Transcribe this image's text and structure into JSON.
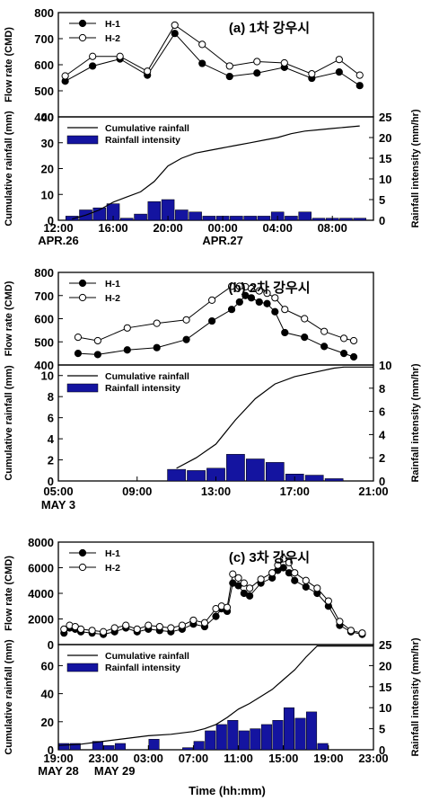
{
  "chart_data": [
    {
      "type": "line",
      "title": "(a) 1차 강우시",
      "xlabel": "",
      "ylabel": "Flow rate (CMD)",
      "xlim": [
        0,
        23
      ],
      "ylim": [
        400,
        800
      ],
      "yticks": [
        400,
        500,
        600,
        700,
        800
      ],
      "x_tick_labels": [
        {
          "x": 0,
          "label": "12:00"
        },
        {
          "x": 4,
          "label": "16:00"
        },
        {
          "x": 8,
          "label": "20:00"
        },
        {
          "x": 12,
          "label": "00:00"
        },
        {
          "x": 16,
          "label": "04:00"
        },
        {
          "x": 20,
          "label": "08:00"
        }
      ],
      "date_labels": [
        {
          "x": 0,
          "label": "APR.26"
        },
        {
          "x": 12,
          "label": "APR.27"
        }
      ],
      "legend": "top-left",
      "series": [
        {
          "name": "H-1",
          "marker": "filled-circle",
          "x": [
            0.5,
            2.5,
            4.5,
            6.5,
            8.5,
            10.5,
            12.5,
            14.5,
            16.5,
            18.5,
            20.5,
            22
          ],
          "y": [
            537,
            595,
            622,
            560,
            720,
            605,
            555,
            568,
            590,
            548,
            572,
            520
          ]
        },
        {
          "name": "H-2",
          "marker": "open-circle",
          "x": [
            0.5,
            2.5,
            4.5,
            6.5,
            8.5,
            10.5,
            12.5,
            14.5,
            16.5,
            18.5,
            20.5,
            22
          ],
          "y": [
            557,
            632,
            632,
            575,
            752,
            678,
            595,
            612,
            607,
            565,
            620,
            560
          ]
        }
      ]
    },
    {
      "type": "bar",
      "ylabel": "Cumulative rainfall (mm)",
      "y2label": "Rainfall intensity (mm/hr)",
      "xlim": [
        0,
        23
      ],
      "ylim": [
        0,
        40
      ],
      "y2lim": [
        0,
        25
      ],
      "yticks": [
        0,
        10,
        20,
        30,
        40
      ],
      "y2ticks": [
        0,
        5,
        10,
        15,
        20,
        25
      ],
      "legend": "top-left",
      "series": [
        {
          "name": "Cumulative rainfall",
          "type": "line",
          "axis": "left",
          "x": [
            1,
            2,
            3,
            4,
            5,
            6,
            7,
            8,
            9,
            10,
            11,
            12,
            13,
            14,
            15,
            16,
            17,
            18,
            19,
            20,
            21,
            22
          ],
          "y": [
            0.5,
            2,
            4,
            7,
            9,
            11,
            15,
            21,
            24,
            26,
            27,
            28,
            29,
            30,
            31,
            32,
            33.5,
            34.5,
            35,
            35.5,
            36,
            36.5
          ]
        },
        {
          "name": "Rainfall intensity",
          "type": "bar",
          "axis": "right",
          "x": [
            1,
            2,
            3,
            4,
            5,
            6,
            7,
            8,
            9,
            10,
            11,
            12,
            13,
            14,
            15,
            16,
            17,
            18,
            19,
            20,
            21,
            22
          ],
          "y": [
            1,
            2.5,
            3,
            4,
            0.5,
            1.5,
            4.5,
            5,
            2.5,
            2,
            1,
            1,
            1,
            1,
            1,
            2,
            1,
            2,
            0.5,
            0.5,
            0.5,
            0.5
          ]
        }
      ]
    },
    {
      "type": "line",
      "title": "(b) 2차 강우시",
      "xlabel": "",
      "ylabel": "Flow rate (CMD)",
      "xlim": [
        5,
        21
      ],
      "ylim": [
        400,
        800
      ],
      "yticks": [
        400,
        500,
        600,
        700,
        800
      ],
      "x_tick_labels": [
        {
          "x": 5,
          "label": "05:00"
        },
        {
          "x": 9,
          "label": "09:00"
        },
        {
          "x": 13,
          "label": "13:00"
        },
        {
          "x": 17,
          "label": "17:00"
        },
        {
          "x": 21,
          "label": "21:00"
        }
      ],
      "date_labels": [
        {
          "x": 5,
          "label": "MAY 3"
        }
      ],
      "legend": "top-left",
      "series": [
        {
          "name": "H-1",
          "marker": "filled-circle",
          "x": [
            6,
            7,
            8.5,
            10,
            11.5,
            12.8,
            13.8,
            14.2,
            14.5,
            14.8,
            15.2,
            15.6,
            16,
            16.5,
            17.5,
            18.5,
            19.5,
            20
          ],
          "y": [
            450,
            445,
            465,
            475,
            510,
            590,
            640,
            672,
            700,
            690,
            672,
            665,
            630,
            540,
            520,
            480,
            450,
            435
          ]
        },
        {
          "name": "H-2",
          "marker": "open-circle",
          "x": [
            6,
            7,
            8.5,
            10,
            11.5,
            12.8,
            13.8,
            14.2,
            14.5,
            14.8,
            15.2,
            15.6,
            16,
            16.5,
            17.5,
            18.5,
            19.5,
            20
          ],
          "y": [
            520,
            505,
            560,
            580,
            595,
            680,
            740,
            740,
            738,
            730,
            720,
            710,
            690,
            640,
            600,
            545,
            515,
            505
          ]
        }
      ]
    },
    {
      "type": "bar",
      "ylabel": "Cumulative rainfall (mm)",
      "y2label": "Rainfall intensity (mm/hr)",
      "xlim": [
        5,
        21
      ],
      "ylim": [
        0,
        11
      ],
      "y2lim": [
        0,
        10
      ],
      "yticks": [
        0,
        2,
        4,
        6,
        8,
        10
      ],
      "y2ticks": [
        0,
        2,
        4,
        6,
        8,
        10
      ],
      "legend": "top-left",
      "series": [
        {
          "name": "Cumulative rainfall",
          "type": "line",
          "axis": "left",
          "x": [
            11,
            12,
            13,
            14,
            15,
            16,
            17,
            18,
            19,
            19.5,
            20,
            21
          ],
          "y": [
            1.2,
            2.2,
            3.5,
            5.8,
            7.8,
            9.2,
            9.9,
            10.3,
            10.7,
            10.8,
            10.8,
            10.8
          ]
        },
        {
          "name": "Rainfall intensity",
          "type": "bar",
          "axis": "right",
          "x": [
            11,
            12,
            13,
            14,
            15,
            16,
            17,
            18,
            19
          ],
          "y": [
            1,
            0.9,
            1.1,
            2.3,
            1.9,
            1.6,
            0.6,
            0.5,
            0.2
          ]
        }
      ]
    },
    {
      "type": "line",
      "title": "(c) 3차 강우시",
      "xlabel": "",
      "ylabel": "Flow rate (CMD)",
      "xlim": [
        0,
        28
      ],
      "ylim": [
        0,
        8000
      ],
      "yticks": [
        0,
        2000,
        4000,
        6000,
        8000
      ],
      "x_tick_labels": [
        {
          "x": 0,
          "label": "19:00"
        },
        {
          "x": 4,
          "label": "23:00"
        },
        {
          "x": 8,
          "label": "03:00"
        },
        {
          "x": 12,
          "label": "07:00"
        },
        {
          "x": 16,
          "label": "11:00"
        },
        {
          "x": 20,
          "label": "15:00"
        },
        {
          "x": 24,
          "label": "19:00"
        },
        {
          "x": 28,
          "label": "23:00"
        }
      ],
      "date_labels": [
        {
          "x": 0,
          "label": "MAY 28"
        },
        {
          "x": 5,
          "label": "MAY 29"
        }
      ],
      "legend": "top-left",
      "series": [
        {
          "name": "H-1",
          "marker": "filled-circle",
          "x": [
            0.5,
            1,
            1.5,
            2,
            3,
            4,
            5,
            6,
            7,
            8,
            9,
            10,
            11,
            12,
            13,
            14,
            14.5,
            15,
            15.5,
            16,
            16.5,
            17,
            18,
            19,
            19.5,
            20,
            20.5,
            21,
            22,
            23,
            24,
            25,
            26,
            27
          ],
          "y": [
            900,
            1300,
            1200,
            1000,
            900,
            800,
            1000,
            1300,
            1000,
            1200,
            1100,
            1000,
            1200,
            1600,
            1400,
            2200,
            2800,
            2600,
            4800,
            4600,
            4000,
            3800,
            4800,
            5200,
            5800,
            6000,
            5600,
            5000,
            4500,
            4000,
            3000,
            1500,
            1000,
            800
          ]
        },
        {
          "name": "H-2",
          "marker": "open-circle",
          "x": [
            0.5,
            1,
            1.5,
            2,
            3,
            4,
            5,
            6,
            7,
            8,
            9,
            10,
            11,
            12,
            13,
            14,
            14.5,
            15,
            15.5,
            16,
            16.5,
            17,
            18,
            19,
            19.5,
            20,
            20.5,
            21,
            22,
            23,
            24,
            25,
            26,
            27
          ],
          "y": [
            1200,
            1500,
            1400,
            1200,
            1100,
            1000,
            1300,
            1500,
            1200,
            1500,
            1400,
            1300,
            1500,
            1900,
            1700,
            2800,
            3000,
            2900,
            5500,
            5200,
            4800,
            4400,
            5100,
            5600,
            6200,
            6700,
            6400,
            5600,
            5000,
            4400,
            3400,
            1800,
            1100,
            900
          ]
        }
      ]
    },
    {
      "type": "bar",
      "xlabel": "Time (hh:mm)",
      "ylabel": "Cumulative rainfall (mm)",
      "y2label": "Rainfall intensity (mm/hr)",
      "xlim": [
        0,
        28
      ],
      "ylim": [
        0,
        75
      ],
      "y2lim": [
        0,
        25
      ],
      "yticks": [
        0,
        20,
        40,
        60
      ],
      "y2ticks": [
        0,
        5,
        10,
        15,
        20,
        25
      ],
      "legend": "top-left",
      "series": [
        {
          "name": "Cumulative rainfall",
          "type": "line",
          "axis": "left",
          "x": [
            0,
            2,
            4,
            6,
            8,
            10,
            12,
            13,
            14,
            15,
            16,
            17,
            18,
            19,
            20,
            21,
            22,
            23,
            28
          ],
          "y": [
            3,
            4,
            6,
            8,
            10,
            11,
            13,
            15,
            18,
            23,
            29,
            33,
            38,
            43,
            50,
            57,
            66,
            74,
            74
          ]
        },
        {
          "name": "Rainfall intensity",
          "type": "bar",
          "axis": "right",
          "x": [
            0.5,
            1.5,
            3.5,
            4.5,
            5.5,
            8.5,
            11.5,
            12.5,
            13.5,
            14.5,
            15.5,
            16.5,
            17.5,
            18.5,
            19.5,
            20.5,
            21.5,
            22.5,
            23.5
          ],
          "y": [
            1.5,
            1.5,
            2,
            1,
            1.5,
            2.5,
            0.5,
            2,
            4.5,
            6,
            7,
            4.5,
            5,
            6,
            7,
            10,
            7.5,
            9,
            1.5
          ]
        }
      ]
    }
  ]
}
